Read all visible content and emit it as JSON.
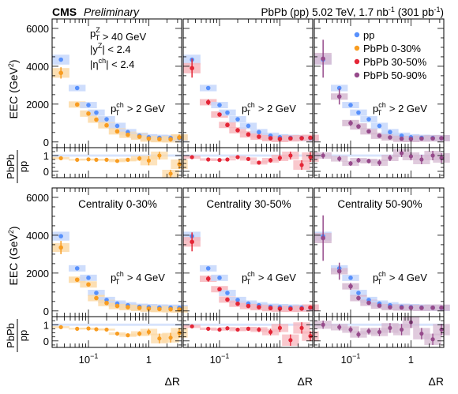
{
  "header": {
    "experiment": "CMS",
    "status": "Preliminary",
    "energy_text": "PbPb (pp) 5.02 TeV, 1.7 nb",
    "energy_sup": "-1",
    "lumi_text": "(301 pb",
    "lumi_sup": "-1",
    "lumi_close": ")"
  },
  "selection_labels": {
    "z_pt": {
      "main": "p",
      "sub": "T",
      "sup": "Z",
      "rest": " > 40 GeV"
    },
    "z_y": {
      "main": "|y",
      "sup": "Z",
      "rest": "| < 2.4"
    },
    "eta": {
      "main": "|η",
      "sup": "ch",
      "rest": "| < 2.4"
    }
  },
  "colors": {
    "pp": "#5790fc",
    "pp_band": "#c6d7fb",
    "pbpb_0_30": "#f89c20",
    "pbpb_0_30_band": "#fcd9a6",
    "pbpb_30_50": "#e42536",
    "pbpb_30_50_band": "#f7b6bc",
    "pbpb_50_90": "#964a8b",
    "pbpb_50_90_band": "#d6bad1"
  },
  "legend": [
    {
      "label": "pp",
      "color_key": "pp"
    },
    {
      "label": "PbPb 0-30%",
      "color_key": "pbpb_0_30"
    },
    {
      "label": "PbPb 30-50%",
      "color_key": "pbpb_30_50"
    },
    {
      "label": "PbPb 50-90%",
      "color_key": "pbpb_50_90"
    }
  ],
  "axes": {
    "x_label": "ΔR",
    "x_ticks": [
      {
        "value": 0.1,
        "label": "10",
        "sup": "−1"
      },
      {
        "value": 1,
        "label": "1",
        "sup": ""
      }
    ],
    "y_label_main": "EEC (GeV",
    "y_label_sup": "2",
    "y_label_close": ")",
    "y_ticks": [
      "0",
      "2000",
      "4000",
      "6000"
    ],
    "ratio_label_num": "PbPb",
    "ratio_label_den": "pp",
    "ratio_ticks": [
      "0",
      "1"
    ]
  },
  "chart_data": {
    "type": "scatter",
    "x_scale": "log",
    "xlim": [
      0.025,
      3.5
    ],
    "ylim_main": [
      -300,
      6500
    ],
    "ylim_ratio": [
      -0.4,
      1.5
    ],
    "pt_labels": {
      "main": "p",
      "sub": "T",
      "sup": "ch",
      "row0": " > 2 GeV",
      "row1": " > 4 GeV"
    },
    "centrality_labels": [
      "Centrality 0-30%",
      "Centrality 30-50%",
      "Centrality 50-90%"
    ],
    "x": [
      0.035,
      0.065,
      0.1,
      0.135,
      0.2,
      0.3,
      0.45,
      0.7,
      1.0,
      1.5,
      2.3,
      3.2
    ],
    "rows": [
      {
        "pt_cut": "pT > 2 GeV",
        "pp": [
          4350,
          2850,
          1950,
          1550,
          1200,
          850,
          520,
          330,
          250,
          220,
          210,
          200
        ],
        "panels": [
          {
            "series": "PbPb 0-30%",
            "color_key": "pbpb_0_30",
            "values": [
              3650,
              1980,
              1500,
              1180,
              880,
              560,
              380,
              280,
              180,
              150,
              140,
              240
            ],
            "errors": [
              300,
              80,
              60,
              50,
              40,
              40,
              60,
              60,
              80,
              100,
              120,
              150
            ],
            "ratio": [
              0.83,
              0.73,
              0.76,
              0.73,
              0.73,
              0.66,
              0.73,
              0.82,
              0.68,
              1.0,
              -0.15,
              0.45
            ],
            "ratio_err": [
              0.08,
              0.05,
              0.05,
              0.05,
              0.06,
              0.08,
              0.1,
              0.15,
              0.3,
              0.25,
              0.25,
              0.3
            ]
          },
          {
            "series": "PbPb 30-50%",
            "color_key": "pbpb_30_50",
            "values": [
              3900,
              2100,
              1450,
              900,
              620,
              400,
              280,
              200,
              160,
              190,
              200,
              220
            ],
            "errors": [
              500,
              150,
              80,
              60,
              50,
              40,
              50,
              60,
              60,
              80,
              80,
              90
            ],
            "ratio": [
              0.9,
              0.75,
              0.72,
              0.75,
              0.9,
              0.78,
              0.55,
              0.7,
              0.85,
              1.0,
              0.4,
              0.9
            ],
            "ratio_err": [
              0.1,
              0.08,
              0.06,
              0.06,
              0.08,
              0.1,
              0.12,
              0.15,
              0.2,
              0.25,
              0.3,
              0.3
            ]
          },
          {
            "series": "PbPb 50-90%",
            "color_key": "pbpb_50_90",
            "values": [
              4400,
              2400,
              1000,
              820,
              560,
              330,
              240,
              170,
              160,
              180,
              190,
              200
            ],
            "errors": [
              1000,
              420,
              150,
              120,
              90,
              70,
              70,
              60,
              60,
              70,
              70,
              80
            ],
            "ratio": [
              1.0,
              0.8,
              0.5,
              0.7,
              0.65,
              0.55,
              0.85,
              1.15,
              0.95,
              0.75,
              1.0,
              0.85
            ],
            "ratio_err": [
              0.2,
              0.18,
              0.15,
              0.15,
              0.15,
              0.2,
              0.2,
              0.25,
              0.25,
              0.3,
              0.3,
              0.3
            ]
          }
        ]
      },
      {
        "pt_cut": "pT > 4 GeV",
        "pp": [
          3950,
          2250,
          1750,
          950,
          580,
          390,
          300,
          220,
          200,
          180,
          170,
          160
        ],
        "panels": [
          {
            "series": "PbPb 0-30%",
            "color_key": "pbpb_0_30",
            "values": [
              3350,
              1650,
              1400,
              680,
              420,
              260,
              200,
              160,
              120,
              100,
              90,
              80
            ],
            "errors": [
              350,
              100,
              70,
              50,
              40,
              40,
              40,
              40,
              50,
              60,
              60,
              70
            ],
            "ratio": [
              0.85,
              0.75,
              0.77,
              0.72,
              0.7,
              0.45,
              0.35,
              0.45,
              0.55,
              0.15,
              0.2,
              0.5
            ],
            "ratio_err": [
              0.06,
              0.05,
              0.05,
              0.05,
              0.06,
              0.08,
              0.1,
              0.15,
              0.2,
              0.3,
              0.3,
              0.3
            ]
          },
          {
            "series": "PbPb 30-50%",
            "color_key": "pbpb_30_50",
            "values": [
              3650,
              1700,
              1150,
              600,
              380,
              260,
              200,
              150,
              120,
              110,
              120,
              180
            ],
            "errors": [
              500,
              150,
              90,
              60,
              50,
              40,
              40,
              50,
              50,
              60,
              70,
              80
            ],
            "ratio": [
              0.9,
              0.75,
              0.7,
              0.78,
              0.7,
              0.75,
              0.7,
              0.55,
              0.8,
              0.05,
              0.8,
              0.3
            ],
            "ratio_err": [
              0.1,
              0.08,
              0.07,
              0.08,
              0.1,
              0.12,
              0.15,
              0.2,
              0.25,
              0.35,
              0.35,
              0.3
            ]
          },
          {
            "series": "PbPb 50-90%",
            "color_key": "pbpb_50_90",
            "values": [
              3850,
              2100,
              1300,
              680,
              430,
              280,
              200,
              180,
              170,
              160,
              170,
              170
            ],
            "errors": [
              1200,
              450,
              180,
              120,
              80,
              70,
              60,
              60,
              60,
              70,
              70,
              80
            ],
            "ratio": [
              1.0,
              0.85,
              0.7,
              0.4,
              0.6,
              0.55,
              0.8,
              0.7,
              1.15,
              0.45,
              0.1,
              0.7
            ],
            "ratio_err": [
              0.25,
              0.2,
              0.2,
              0.2,
              0.2,
              0.25,
              0.3,
              0.35,
              0.35,
              0.35,
              0.35,
              0.35
            ]
          }
        ]
      }
    ]
  }
}
